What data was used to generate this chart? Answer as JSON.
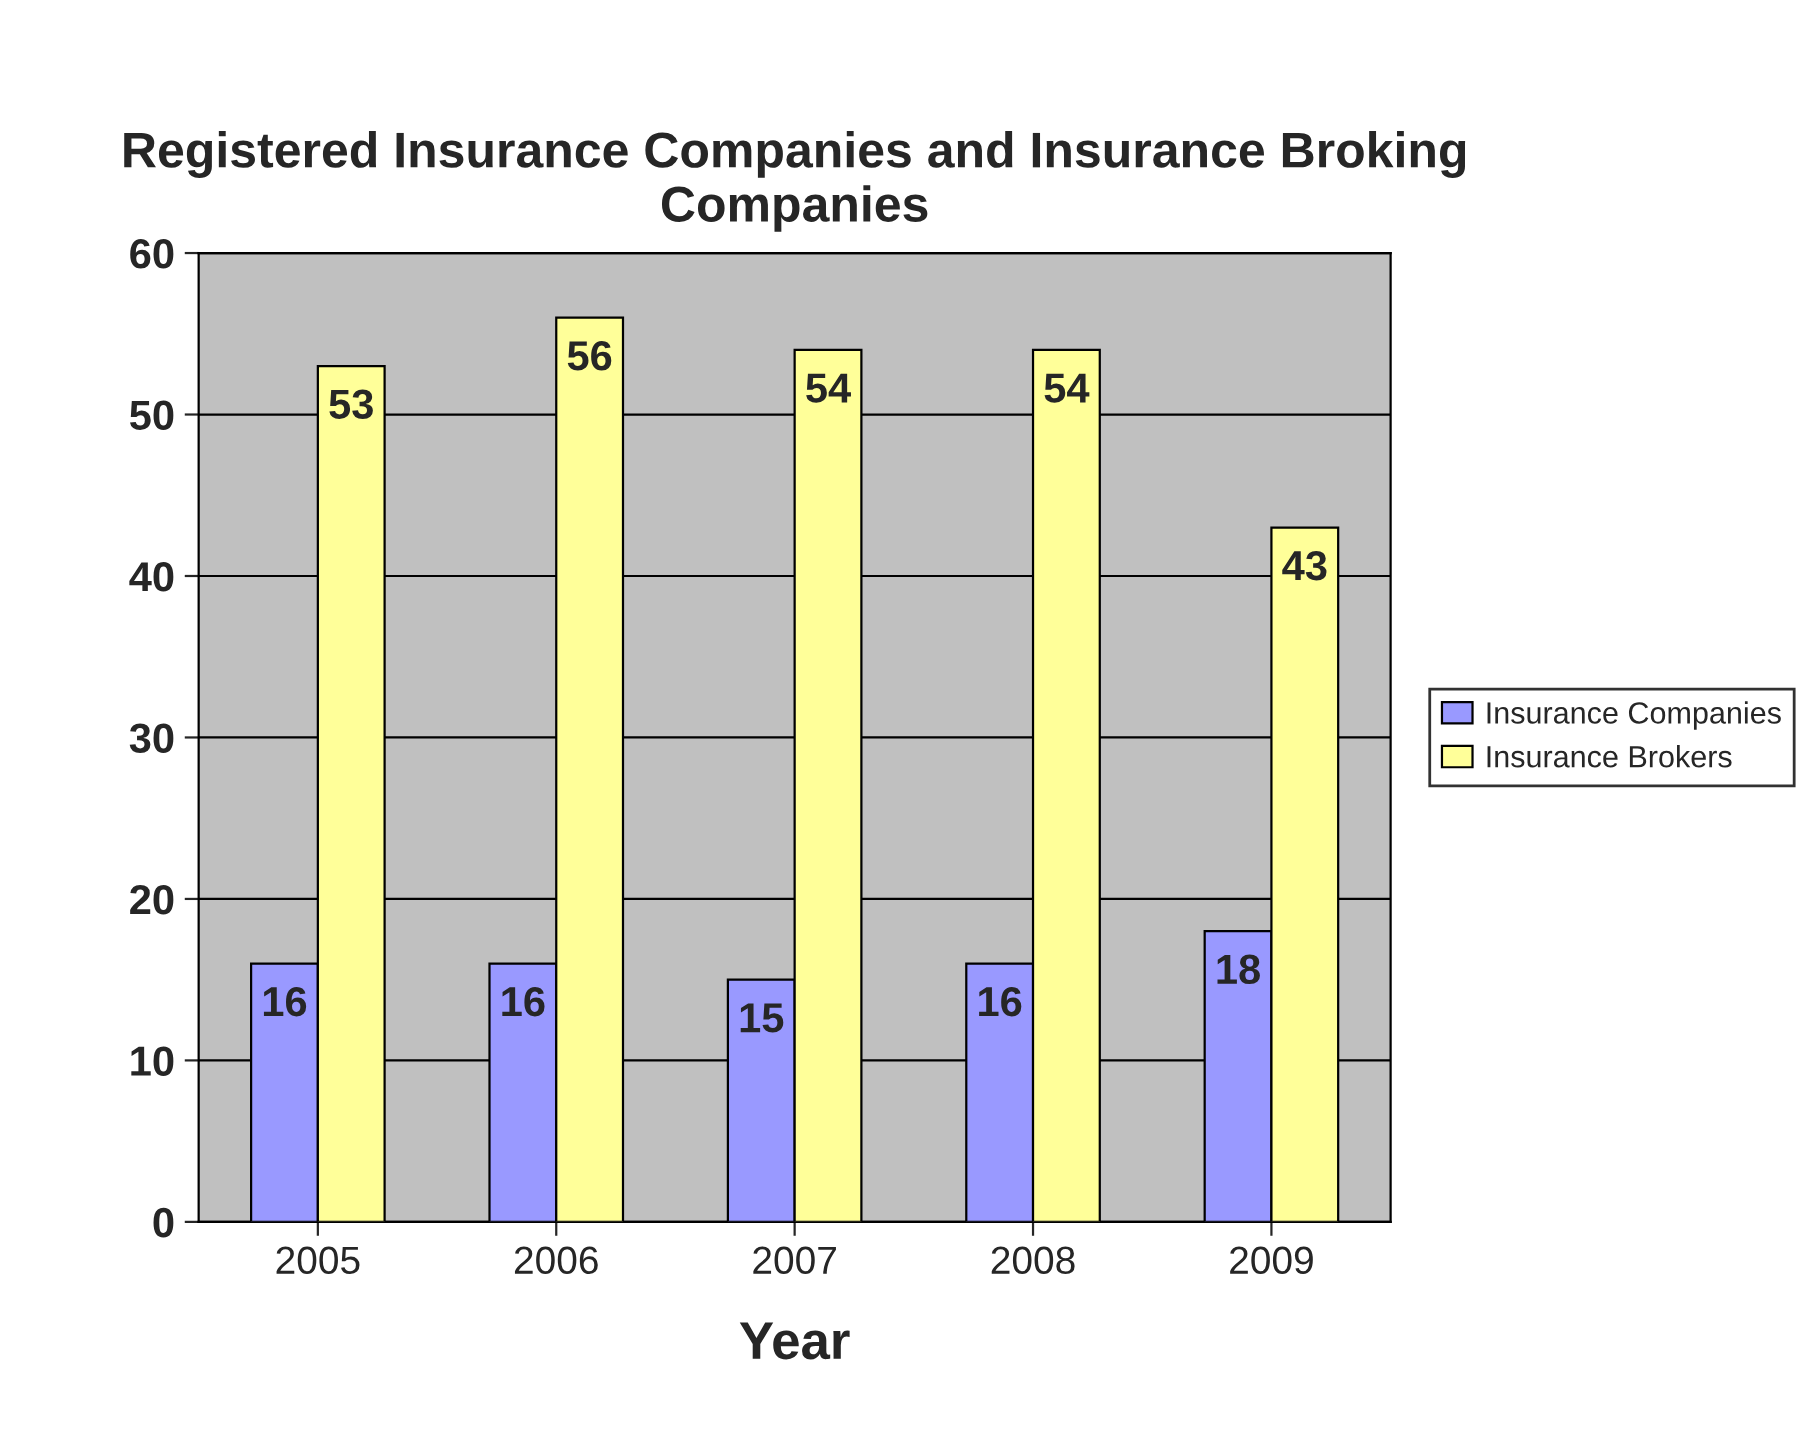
{
  "chart_data": {
    "type": "bar",
    "title": "Registered Insurance Companies and Insurance Broking Companies",
    "xlabel": "Year",
    "categories": [
      "2005",
      "2006",
      "2007",
      "2008",
      "2009"
    ],
    "series": [
      {
        "name": "Insurance Companies",
        "color": "#9999ff",
        "values": [
          16,
          16,
          15,
          16,
          18
        ]
      },
      {
        "name": "Insurance Brokers",
        "color": "#ffff99",
        "values": [
          53,
          56,
          54,
          54,
          43
        ]
      }
    ],
    "ylim": [
      0,
      60
    ],
    "yticks": [
      0,
      10,
      20,
      30,
      40,
      50,
      60
    ],
    "grid": "y",
    "legend": "right",
    "data_labels": true
  }
}
